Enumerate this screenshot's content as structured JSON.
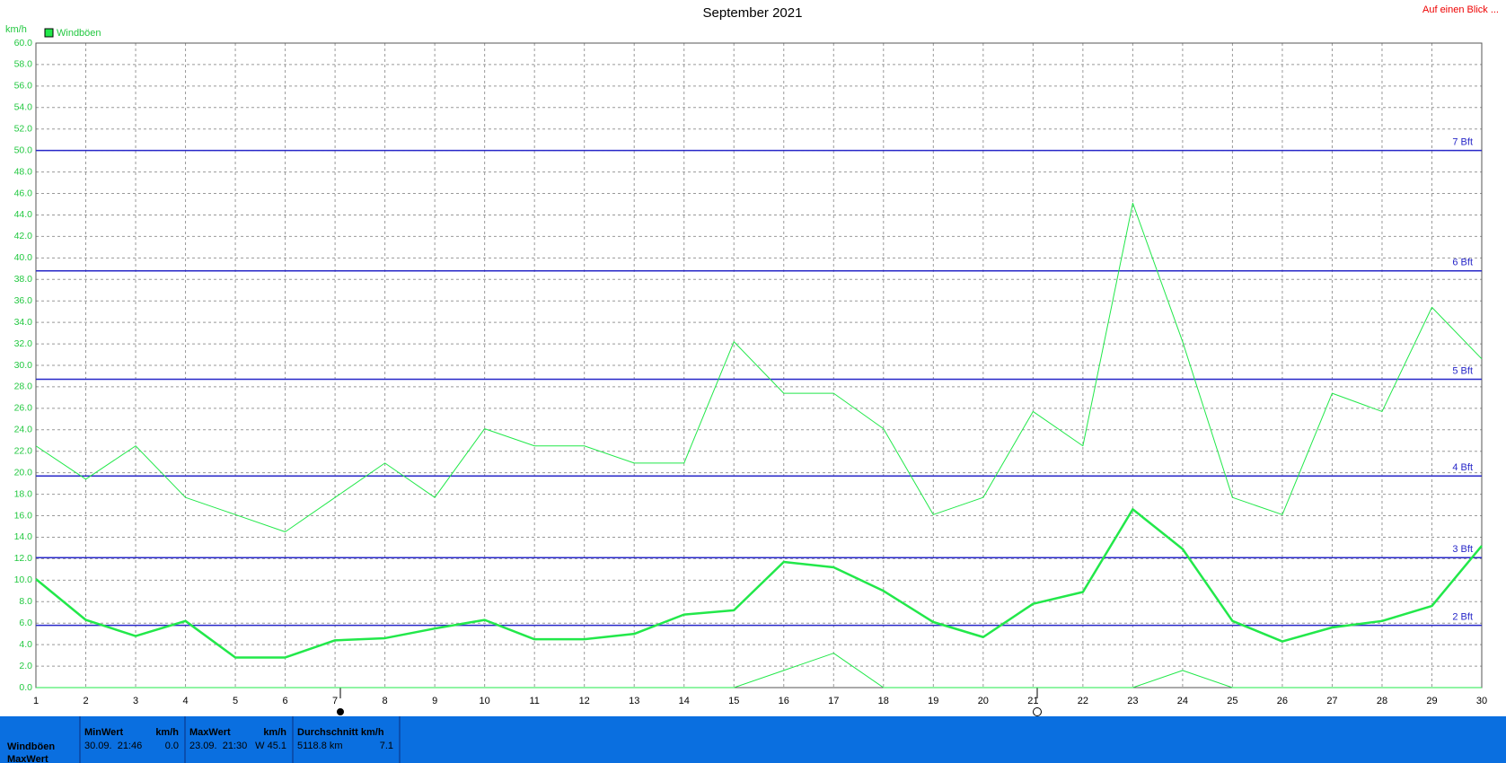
{
  "chart_data": {
    "type": "line",
    "title": "September 2021",
    "y_label": "km/h",
    "x": [
      1,
      2,
      3,
      4,
      5,
      6,
      7,
      8,
      9,
      10,
      11,
      12,
      13,
      14,
      15,
      16,
      17,
      18,
      19,
      20,
      21,
      22,
      23,
      24,
      25,
      26,
      27,
      28,
      29,
      30
    ],
    "xlim": [
      1,
      30
    ],
    "xticks": [
      1,
      2,
      3,
      4,
      5,
      6,
      7,
      8,
      9,
      10,
      11,
      12,
      13,
      14,
      15,
      16,
      17,
      18,
      19,
      20,
      21,
      22,
      23,
      24,
      25,
      26,
      27,
      28,
      29,
      30
    ],
    "ylim": [
      0,
      60
    ],
    "yticks": [
      {
        "value": 0,
        "label": "0.0"
      },
      {
        "value": 2,
        "label": "2.0"
      },
      {
        "value": 4,
        "label": "4.0"
      },
      {
        "value": 6,
        "label": "6.0"
      },
      {
        "value": 8,
        "label": "8.0"
      },
      {
        "value": 10,
        "label": "10.0"
      },
      {
        "value": 12,
        "label": "12.0"
      },
      {
        "value": 14,
        "label": "14.0"
      },
      {
        "value": 16,
        "label": "16.0"
      },
      {
        "value": 18,
        "label": "18.0"
      },
      {
        "value": 20,
        "label": "20.0"
      },
      {
        "value": 22,
        "label": "22.0"
      },
      {
        "value": 24,
        "label": "24.0"
      },
      {
        "value": 26,
        "label": "26.0"
      },
      {
        "value": 28,
        "label": "28.0"
      },
      {
        "value": 30,
        "label": "30.0"
      },
      {
        "value": 32,
        "label": "32.0"
      },
      {
        "value": 34,
        "label": "34.0"
      },
      {
        "value": 36,
        "label": "36.0"
      },
      {
        "value": 38,
        "label": "38.0"
      },
      {
        "value": 40,
        "label": "40.0"
      },
      {
        "value": 42,
        "label": "42.0"
      },
      {
        "value": 44,
        "label": "44.0"
      },
      {
        "value": 46,
        "label": "46.0"
      },
      {
        "value": 48,
        "label": "48.0"
      },
      {
        "value": 50,
        "label": "50.0"
      },
      {
        "value": 52,
        "label": "52.0"
      },
      {
        "value": 54,
        "label": "54.0"
      },
      {
        "value": 56,
        "label": "56.0"
      },
      {
        "value": 58,
        "label": "58.0"
      },
      {
        "value": 60,
        "label": "60.0"
      }
    ],
    "grid": true,
    "legend": "top-left",
    "series": [
      {
        "name": "Windböen",
        "color": "#22e84a",
        "width": 2.5,
        "values": [
          10.1,
          6.3,
          4.8,
          6.2,
          2.8,
          2.8,
          4.4,
          4.6,
          5.5,
          6.3,
          4.5,
          4.5,
          5.0,
          6.8,
          7.2,
          11.7,
          11.2,
          9.0,
          6.1,
          4.7,
          7.8,
          8.9,
          16.6,
          12.9,
          6.2,
          4.3,
          5.6,
          6.2,
          7.6,
          13.2
        ]
      },
      {
        "color": "#22e84a",
        "width": 1,
        "values": [
          22.5,
          19.4,
          22.5,
          17.7,
          16.1,
          14.5,
          17.7,
          20.9,
          17.7,
          24.1,
          22.5,
          22.5,
          20.9,
          20.9,
          32.2,
          27.4,
          27.4,
          24.1,
          16.1,
          17.7,
          25.7,
          22.5,
          45.1,
          32.2,
          17.7,
          16.1,
          27.4,
          25.7,
          35.4,
          30.6
        ]
      },
      {
        "color": "#22e84a",
        "width": 1,
        "values": [
          0,
          0,
          0,
          0,
          0,
          0,
          0,
          0,
          0,
          0,
          0,
          0,
          0,
          0,
          0,
          1.6,
          3.2,
          0,
          0,
          0,
          0,
          0,
          0,
          1.6,
          0,
          0,
          0,
          0,
          0,
          0
        ]
      }
    ],
    "reference_lines": {
      "color": "#2727c8",
      "lines": [
        {
          "value": 5.8,
          "label": "2 Bft"
        },
        {
          "value": 12.1,
          "label": "3 Bft"
        },
        {
          "value": 19.7,
          "label": "4 Bft"
        },
        {
          "value": 28.7,
          "label": "5 Bft"
        },
        {
          "value": 38.8,
          "label": "6 Bft"
        },
        {
          "value": 50.0,
          "label": "7 Bft"
        }
      ]
    }
  },
  "link": "Auf einen Blick ...",
  "footer": {
    "row_labels": [
      "Windböen",
      "MaxWert"
    ],
    "boxes": [
      {
        "header": "MinWert",
        "unit": "km/h",
        "left": "30.09.  21:46",
        "right": "0.0"
      },
      {
        "header": "MaxWert",
        "unit": "km/h",
        "left": "23.09.  21:30",
        "right": "W 45.1"
      },
      {
        "header": "Durchschnitt km/h",
        "unit": "",
        "left": "5118.8 km",
        "right": "7.1"
      }
    ]
  }
}
